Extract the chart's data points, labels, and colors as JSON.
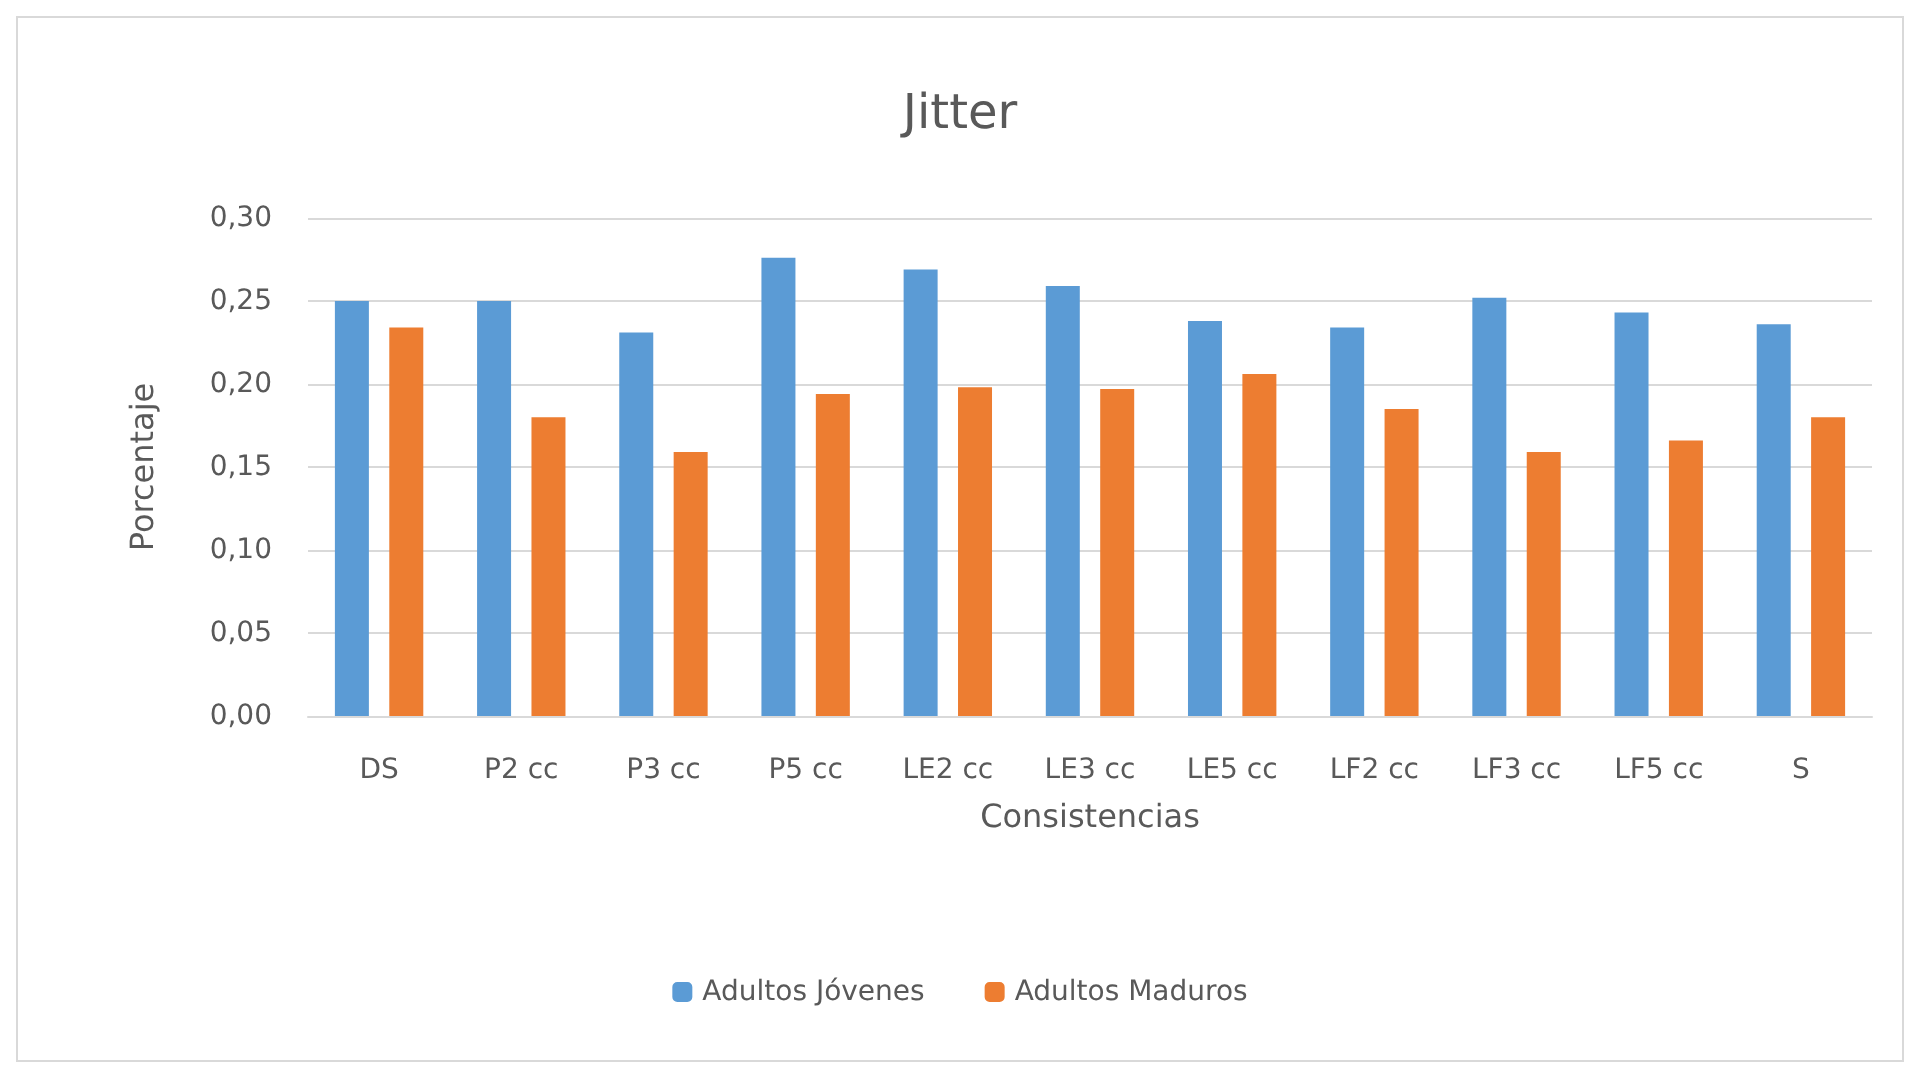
{
  "chart_data": {
    "type": "bar",
    "title": "Jitter",
    "xlabel": "Consistencias",
    "ylabel": "Porcentaje",
    "categories": [
      "DS",
      "P2 cc",
      "P3 cc",
      "P5 cc",
      "LE2 cc",
      "LE3 cc",
      "LE5 cc",
      "LF2 cc",
      "LF3 cc",
      "LF5 cc",
      "S"
    ],
    "series": [
      {
        "name": "Adultos Jóvenes",
        "color": "#5b9bd5",
        "values": [
          0.25,
          0.25,
          0.231,
          0.276,
          0.269,
          0.259,
          0.238,
          0.234,
          0.252,
          0.243,
          0.236
        ]
      },
      {
        "name": "Adultos Maduros",
        "color": "#ed7d31",
        "values": [
          0.234,
          0.18,
          0.159,
          0.194,
          0.198,
          0.197,
          0.206,
          0.185,
          0.159,
          0.166,
          0.18
        ]
      }
    ],
    "ylim": [
      0,
      0.3
    ],
    "yticks": [
      {
        "value": 0,
        "label": "0,00"
      },
      {
        "value": 0.05,
        "label": "0,05"
      },
      {
        "value": 0.1,
        "label": "0,10"
      },
      {
        "value": 0.15,
        "label": "0,15"
      },
      {
        "value": 0.2,
        "label": "0,20"
      },
      {
        "value": 0.25,
        "label": "0,25"
      },
      {
        "value": 0.3,
        "label": "0,30"
      }
    ],
    "grid": "y",
    "legend": "bottom"
  }
}
